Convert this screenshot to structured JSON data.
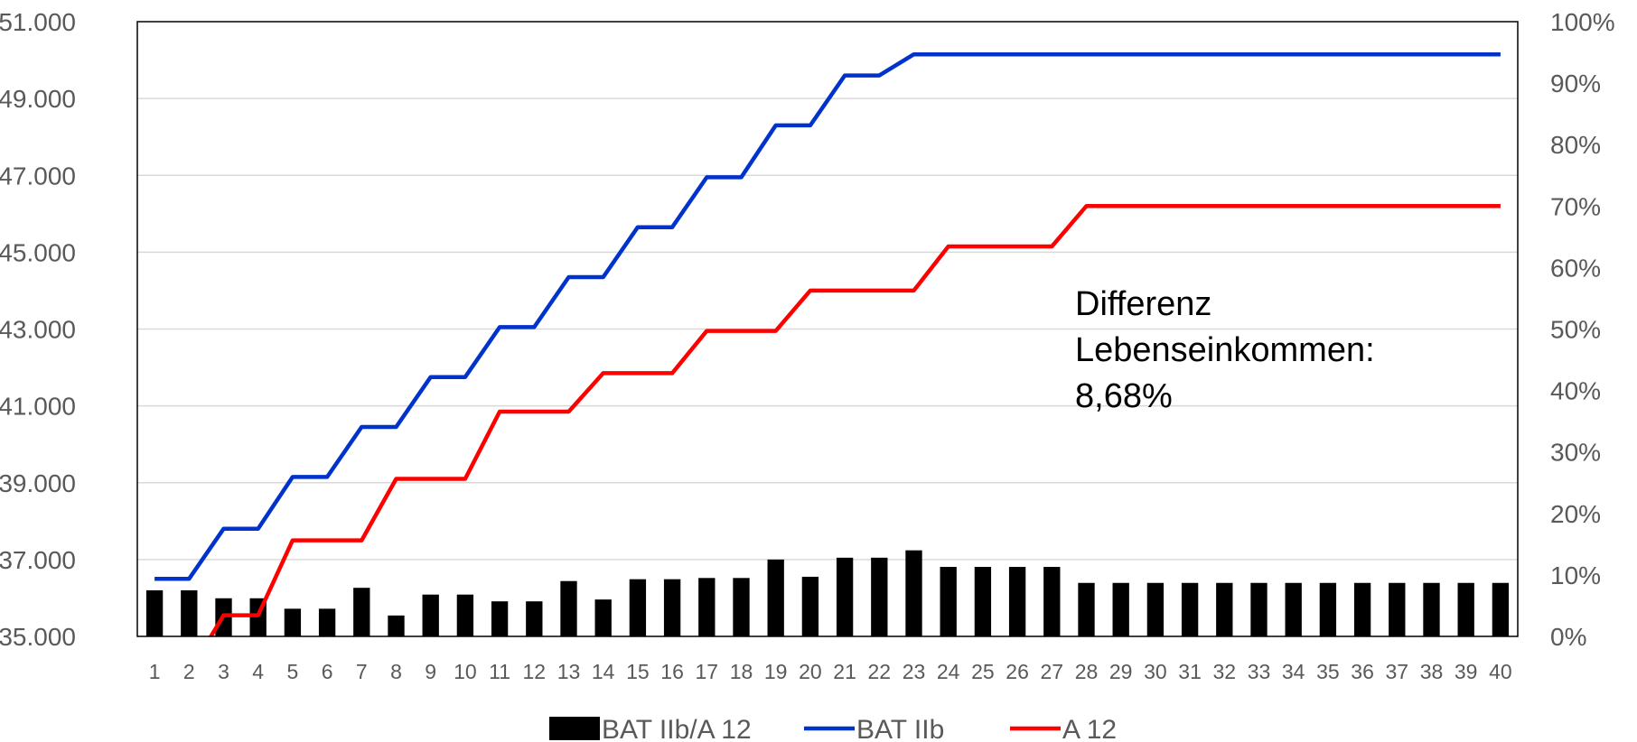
{
  "chart_data": {
    "type": "bar+line",
    "categories": [
      "1",
      "2",
      "3",
      "4",
      "5",
      "6",
      "7",
      "8",
      "9",
      "10",
      "11",
      "12",
      "13",
      "14",
      "15",
      "16",
      "17",
      "18",
      "19",
      "20",
      "21",
      "22",
      "23",
      "24",
      "25",
      "26",
      "27",
      "28",
      "29",
      "30",
      "31",
      "32",
      "33",
      "34",
      "35",
      "36",
      "37",
      "38",
      "39",
      "40"
    ],
    "y_left": {
      "ylim": [
        35000,
        51000
      ],
      "ticks": [
        35000,
        37000,
        39000,
        41000,
        43000,
        45000,
        47000,
        49000,
        51000
      ],
      "tick_labels": [
        "35.000",
        "37.000",
        "39.000",
        "41.000",
        "43.000",
        "45.000",
        "47.000",
        "49.000",
        "51.000"
      ]
    },
    "y_right": {
      "ylim": [
        0,
        100
      ],
      "ticks": [
        0,
        10,
        20,
        30,
        40,
        50,
        60,
        70,
        80,
        90,
        100
      ],
      "tick_labels": [
        "0%",
        "10%",
        "20%",
        "30%",
        "40%",
        "50%",
        "60%",
        "70%",
        "80%",
        "90%",
        "100%"
      ]
    },
    "series": [
      {
        "name": "BAT IIb/A 12",
        "kind": "bar",
        "axis": "right",
        "color": "#000000",
        "values": [
          7.5,
          7.5,
          6.2,
          6.2,
          4.5,
          4.5,
          7.9,
          3.4,
          6.8,
          6.8,
          5.7,
          5.7,
          9.0,
          6.0,
          9.3,
          9.3,
          9.5,
          9.5,
          12.5,
          9.7,
          12.8,
          12.8,
          14.0,
          11.3,
          11.3,
          11.3,
          11.3,
          8.7,
          8.7,
          8.7,
          8.7,
          8.7,
          8.7,
          8.7,
          8.7,
          8.7,
          8.7,
          8.7,
          8.7,
          8.7
        ]
      },
      {
        "name": "BAT IIb",
        "kind": "line",
        "axis": "left",
        "color": "#0033cc",
        "values": [
          36500,
          36500,
          37800,
          37800,
          39150,
          39150,
          40450,
          40450,
          41750,
          41750,
          43050,
          43050,
          44350,
          44350,
          45650,
          45650,
          46950,
          46950,
          48300,
          48300,
          49600,
          49600,
          50150,
          50150,
          50150,
          50150,
          50150,
          50150,
          50150,
          50150,
          50150,
          50150,
          50150,
          50150,
          50150,
          50150,
          50150,
          50150,
          50150,
          50150
        ]
      },
      {
        "name": "A 12",
        "kind": "line",
        "axis": "left",
        "color": "#ff0000",
        "values": [
          34050,
          34050,
          35550,
          35550,
          37500,
          37500,
          37500,
          39100,
          39100,
          39100,
          40850,
          40850,
          40850,
          41850,
          41850,
          41850,
          42950,
          42950,
          42950,
          44000,
          44000,
          44000,
          44000,
          45150,
          45150,
          45150,
          45150,
          46200,
          46200,
          46200,
          46200,
          46200,
          46200,
          46200,
          46200,
          46200,
          46200,
          46200,
          46200,
          46200
        ]
      }
    ],
    "annotation": [
      "Differenz",
      "Lebenseinkommen:",
      "8,68%"
    ],
    "legend_position": "bottom",
    "grid": true
  }
}
